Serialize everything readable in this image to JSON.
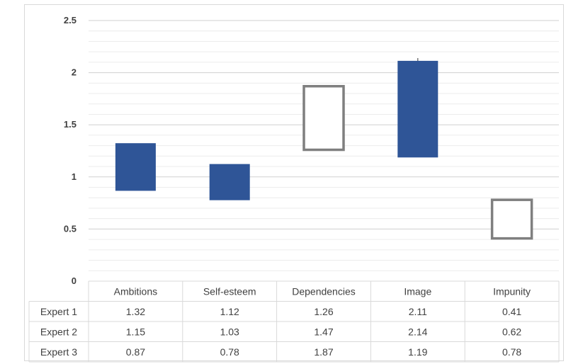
{
  "chart_data": {
    "type": "candlestick",
    "categories": [
      "Ambitions",
      "Self-esteem",
      "Dependencies",
      "Image",
      "Impunity"
    ],
    "series": [
      {
        "name": "Expert 1",
        "values": [
          1.32,
          1.12,
          1.26,
          2.11,
          0.41
        ]
      },
      {
        "name": "Expert 2",
        "values": [
          1.15,
          1.03,
          1.47,
          2.14,
          0.62
        ]
      },
      {
        "name": "Expert 3",
        "values": [
          0.87,
          0.78,
          1.87,
          1.19,
          0.78
        ]
      }
    ],
    "y_ticks": [
      "0",
      "0.5",
      "1",
      "1.5",
      "2",
      "2.5"
    ],
    "ylim": [
      0,
      2.5
    ],
    "minor_gridlines": true,
    "data_table": true,
    "colors": {
      "down": "#2f5597",
      "up_fill": "#ffffff",
      "up_stroke": "#7f7f7f",
      "grid": "#d9d9d9",
      "text": "#404040"
    }
  }
}
